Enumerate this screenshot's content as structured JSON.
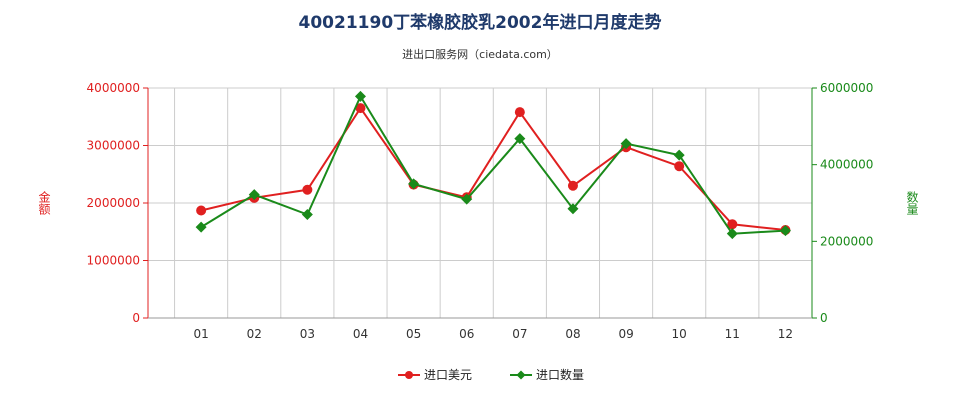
{
  "chart_data": {
    "type": "line",
    "title": "40021190丁苯橡胶胶乳2002年进口月度走势",
    "subtitle": "进出口服务网（ciedata.com）",
    "categories": [
      "01",
      "02",
      "03",
      "04",
      "05",
      "06",
      "07",
      "08",
      "09",
      "10",
      "11",
      "12"
    ],
    "y_left": {
      "label": "金额",
      "ticks": [
        "0",
        "1000000",
        "2000000",
        "3000000",
        "4000000"
      ],
      "range": [
        0,
        4000000
      ],
      "color": "#e02020"
    },
    "y_right": {
      "label": "数量",
      "ticks": [
        "0",
        "2000000",
        "4000000",
        "6000000"
      ],
      "range": [
        0,
        6000000
      ],
      "color": "#1a8a1a"
    },
    "series": [
      {
        "name": "进口美元",
        "axis": "left",
        "color": "#e02020",
        "marker": "circle",
        "values": [
          1870000,
          2090000,
          2230000,
          3650000,
          2320000,
          2100000,
          3580000,
          2300000,
          2970000,
          2640000,
          1630000,
          1530000
        ]
      },
      {
        "name": "进口数量",
        "axis": "right",
        "color": "#1a8a1a",
        "marker": "diamond",
        "values": [
          2370000,
          3220000,
          2700000,
          5780000,
          3500000,
          3100000,
          4680000,
          2850000,
          4550000,
          4250000,
          2200000,
          2280000
        ]
      }
    ],
    "grid": true,
    "legend_position": "bottom-center"
  }
}
